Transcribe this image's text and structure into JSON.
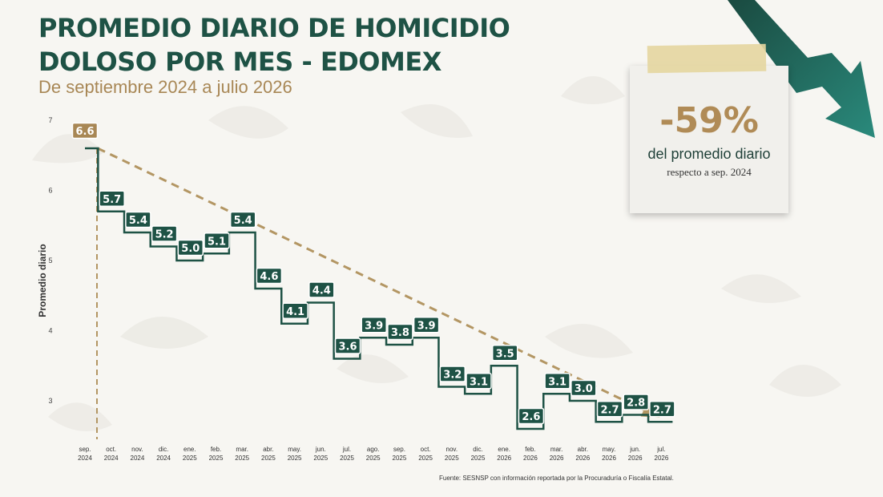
{
  "header": {
    "title_line1": "PROMEDIO DIARIO DE HOMICIDIO",
    "title_line2": "DOLOSO POR MES - EDOMEX",
    "subtitle": "De septiembre 2024 a julio 2026"
  },
  "note": {
    "percent": "-59%",
    "line1": "del promedio diario",
    "line2": "respecto a sep. 2024"
  },
  "source": "Fuente: SESNSP con información reportada por la Procuraduría o Fiscalía Estatal.",
  "colors": {
    "primary": "#1e5245",
    "accent": "#a88755",
    "trend": "#b39663",
    "arrow": "#1d5a4f"
  },
  "chart_data": {
    "type": "line",
    "style": "step",
    "ylabel": "Promedio diario",
    "xlabel": "",
    "ylim": [
      2.5,
      7
    ],
    "yticks": [
      3,
      4,
      5,
      6,
      7
    ],
    "categories": [
      [
        "sep.",
        "2024"
      ],
      [
        "oct.",
        "2024"
      ],
      [
        "nov.",
        "2024"
      ],
      [
        "dic.",
        "2024"
      ],
      [
        "ene.",
        "2025"
      ],
      [
        "feb.",
        "2025"
      ],
      [
        "mar.",
        "2025"
      ],
      [
        "abr.",
        "2025"
      ],
      [
        "may.",
        "2025"
      ],
      [
        "jun.",
        "2025"
      ],
      [
        "jul.",
        "2025"
      ],
      [
        "ago.",
        "2025"
      ],
      [
        "sep.",
        "2025"
      ],
      [
        "oct.",
        "2025"
      ],
      [
        "nov.",
        "2025"
      ],
      [
        "dic.",
        "2025"
      ],
      [
        "ene.",
        "2026"
      ],
      [
        "feb.",
        "2026"
      ],
      [
        "mar.",
        "2026"
      ],
      [
        "abr.",
        "2026"
      ],
      [
        "may.",
        "2026"
      ],
      [
        "jun.",
        "2026"
      ],
      [
        "jul.",
        "2026"
      ]
    ],
    "values": [
      6.6,
      5.7,
      5.4,
      5.2,
      5.0,
      5.1,
      5.4,
      4.6,
      4.1,
      4.4,
      3.6,
      3.9,
      3.8,
      3.9,
      3.2,
      3.1,
      3.5,
      2.6,
      3.1,
      3.0,
      2.7,
      2.8,
      2.7
    ],
    "labels": [
      "6.6",
      "5.7",
      "5.4",
      "5.2",
      "5.0",
      "5.1",
      "5.4",
      "4.6",
      "4.1",
      "4.4",
      "3.6",
      "3.9",
      "3.8",
      "3.9",
      "3.2",
      "3.1",
      "3.5",
      "2.6",
      "3.1",
      "3.0",
      "2.7",
      "2.8",
      "2.7"
    ],
    "trend": {
      "from": 6.6,
      "to": 2.7
    },
    "grid": false
  }
}
